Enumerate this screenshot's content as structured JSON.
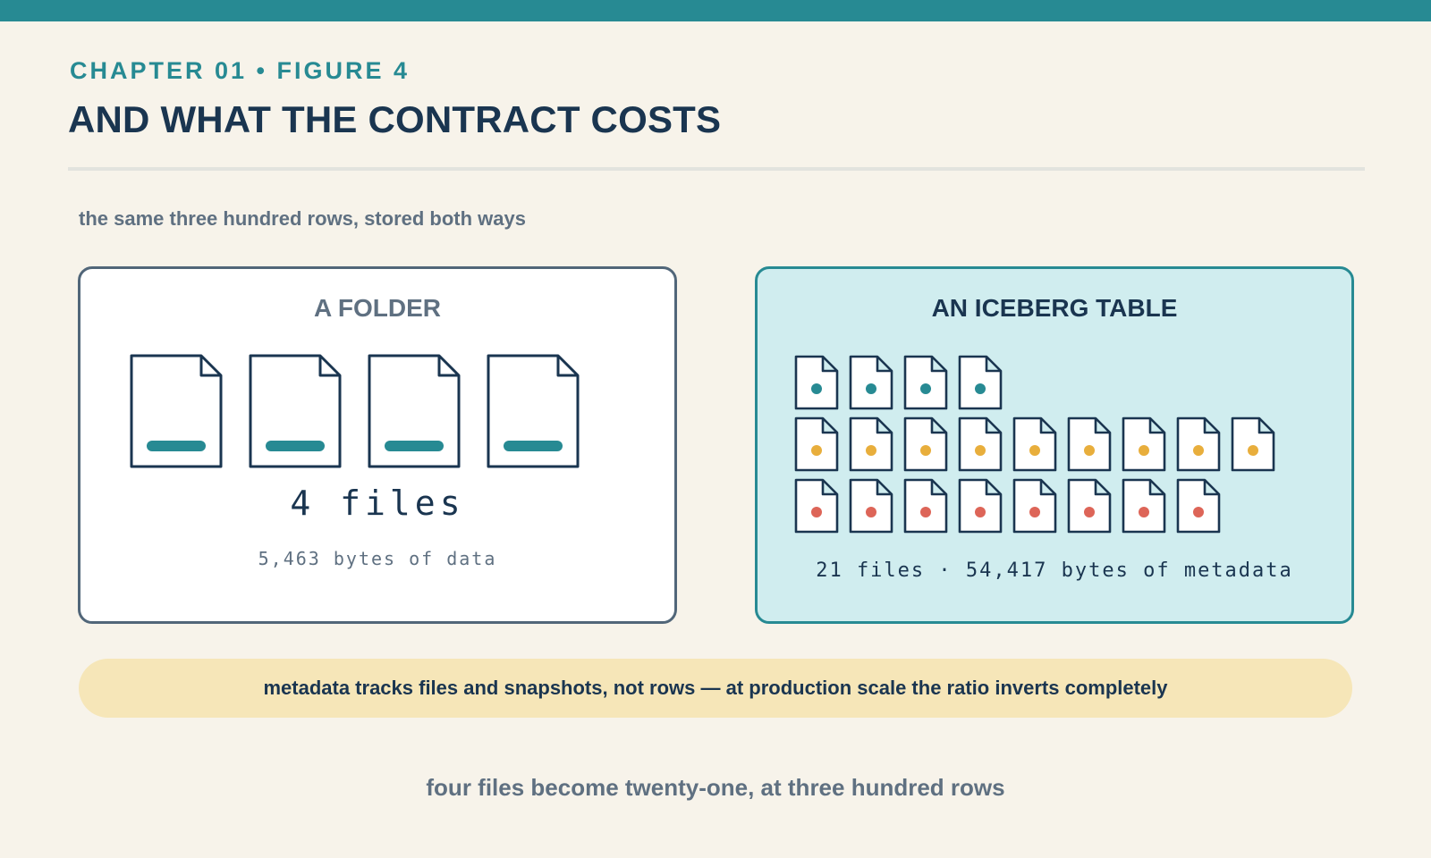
{
  "header": {
    "eyebrow": "CHAPTER 01 • FIGURE 4",
    "title": "AND WHAT THE CONTRACT COSTS"
  },
  "subtitle": "the same three hundred rows, stored both ways",
  "folder_panel": {
    "title": "A FOLDER",
    "file_count_label": "4 files",
    "bytes_label": "5,463 bytes of data",
    "file_icon": "data-file-icon",
    "file_count": 4
  },
  "iceberg_panel": {
    "title": "AN ICEBERG TABLE",
    "summary_label": "21 files · 54,417 bytes of metadata",
    "file_icon": "metadata-file-icon",
    "rows": [
      {
        "kind": "teal",
        "count": 4
      },
      {
        "kind": "yellow",
        "count": 9
      },
      {
        "kind": "red",
        "count": 8
      }
    ]
  },
  "callout": "metadata tracks files and snapshots, not rows — at production scale the ratio inverts completely",
  "caption": "four files become twenty-one, at three hundred rows",
  "colors": {
    "accent": "#278a93",
    "navy": "#1a3550",
    "slate": "#5f7081",
    "background": "#f7f3ea",
    "panel_tint": "#d0edef",
    "callout": "#f6e6b8",
    "dot_teal": "#278a93",
    "dot_yellow": "#e8ae3c",
    "dot_red": "#dd6558"
  }
}
